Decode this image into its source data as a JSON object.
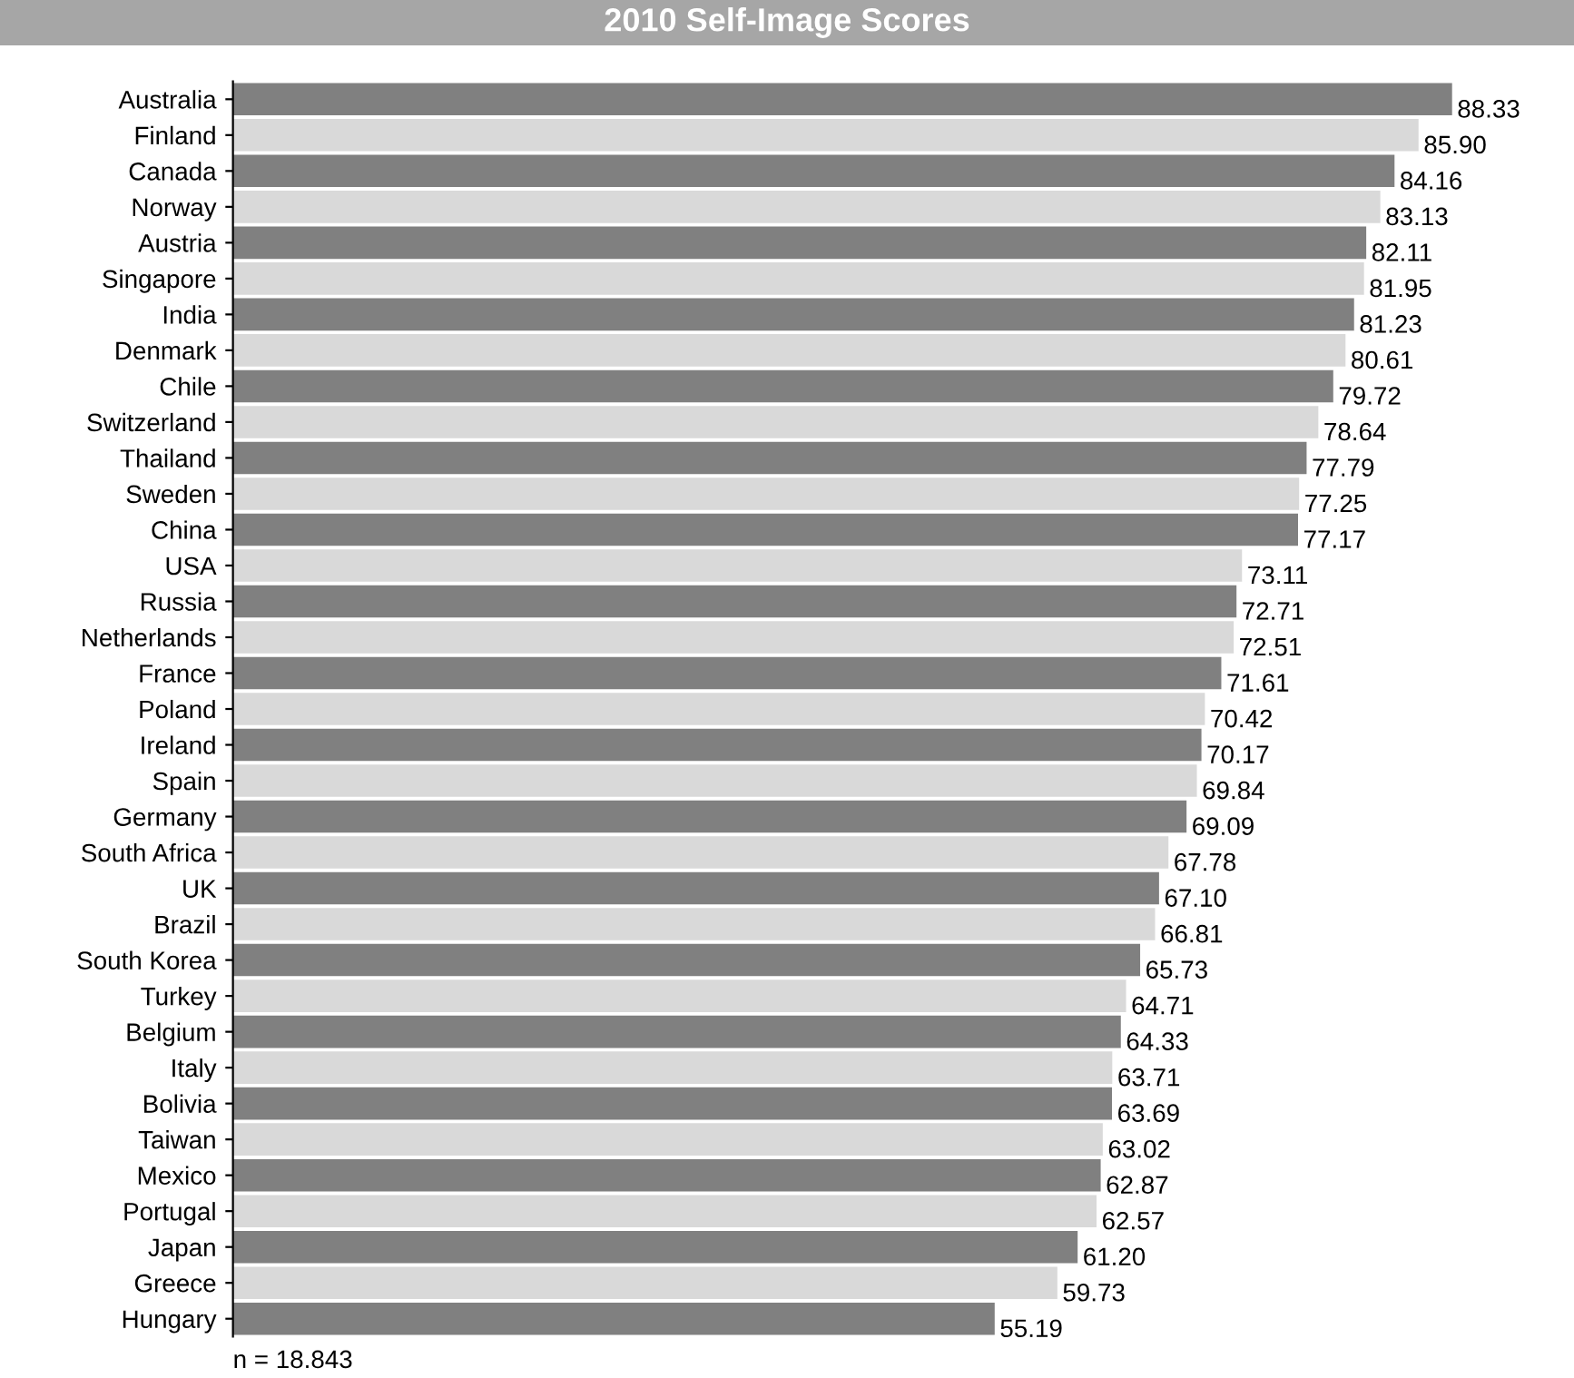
{
  "chart_data": {
    "type": "bar",
    "orientation": "horizontal",
    "title": "2010 Self-Image Scores",
    "categories": [
      "Australia",
      "Finland",
      "Canada",
      "Norway",
      "Austria",
      "Singapore",
      "India",
      "Denmark",
      "Chile",
      "Switzerland",
      "Thailand",
      "Sweden",
      "China",
      "USA",
      "Russia",
      "Netherlands",
      "France",
      "Poland",
      "Ireland",
      "Spain",
      "Germany",
      "South Africa",
      "UK",
      "Brazil",
      "South Korea",
      "Turkey",
      "Belgium",
      "Italy",
      "Bolivia",
      "Taiwan",
      "Mexico",
      "Portugal",
      "Japan",
      "Greece",
      "Hungary"
    ],
    "values": [
      88.33,
      85.9,
      84.16,
      83.13,
      82.11,
      81.95,
      81.23,
      80.61,
      79.72,
      78.64,
      77.79,
      77.25,
      77.17,
      73.11,
      72.71,
      72.51,
      71.61,
      70.42,
      70.17,
      69.84,
      69.09,
      67.78,
      67.1,
      66.81,
      65.73,
      64.71,
      64.33,
      63.71,
      63.69,
      63.02,
      62.87,
      62.57,
      61.2,
      59.73,
      55.19
    ],
    "value_labels": [
      "88.33",
      "85.90",
      "84.16",
      "83.13",
      "82.11",
      "81.95",
      "81.23",
      "80.61",
      "79.72",
      "78.64",
      "77.79",
      "77.25",
      "77.17",
      "73.11",
      "72.71",
      "72.51",
      "71.61",
      "70.42",
      "70.17",
      "69.84",
      "69.09",
      "67.78",
      "67.10",
      "66.81",
      "65.73",
      "64.71",
      "64.33",
      "63.71",
      "63.69",
      "63.02",
      "62.87",
      "62.57",
      "61.20",
      "59.73",
      "55.19"
    ],
    "colors": [
      "#808080",
      "#d9d9d9",
      "#808080",
      "#d9d9d9",
      "#808080",
      "#d9d9d9",
      "#808080",
      "#d9d9d9",
      "#808080",
      "#d9d9d9",
      "#808080",
      "#d9d9d9",
      "#808080",
      "#d9d9d9",
      "#808080",
      "#d9d9d9",
      "#808080",
      "#d9d9d9",
      "#808080",
      "#d9d9d9",
      "#808080",
      "#d9d9d9",
      "#808080",
      "#d9d9d9",
      "#808080",
      "#d9d9d9",
      "#808080",
      "#d9d9d9",
      "#808080",
      "#d9d9d9",
      "#808080",
      "#d9d9d9",
      "#808080",
      "#d9d9d9",
      "#808080"
    ],
    "tick_labels": "y",
    "grid": false,
    "legend": false,
    "annotations": [
      "n = 18.843"
    ]
  }
}
